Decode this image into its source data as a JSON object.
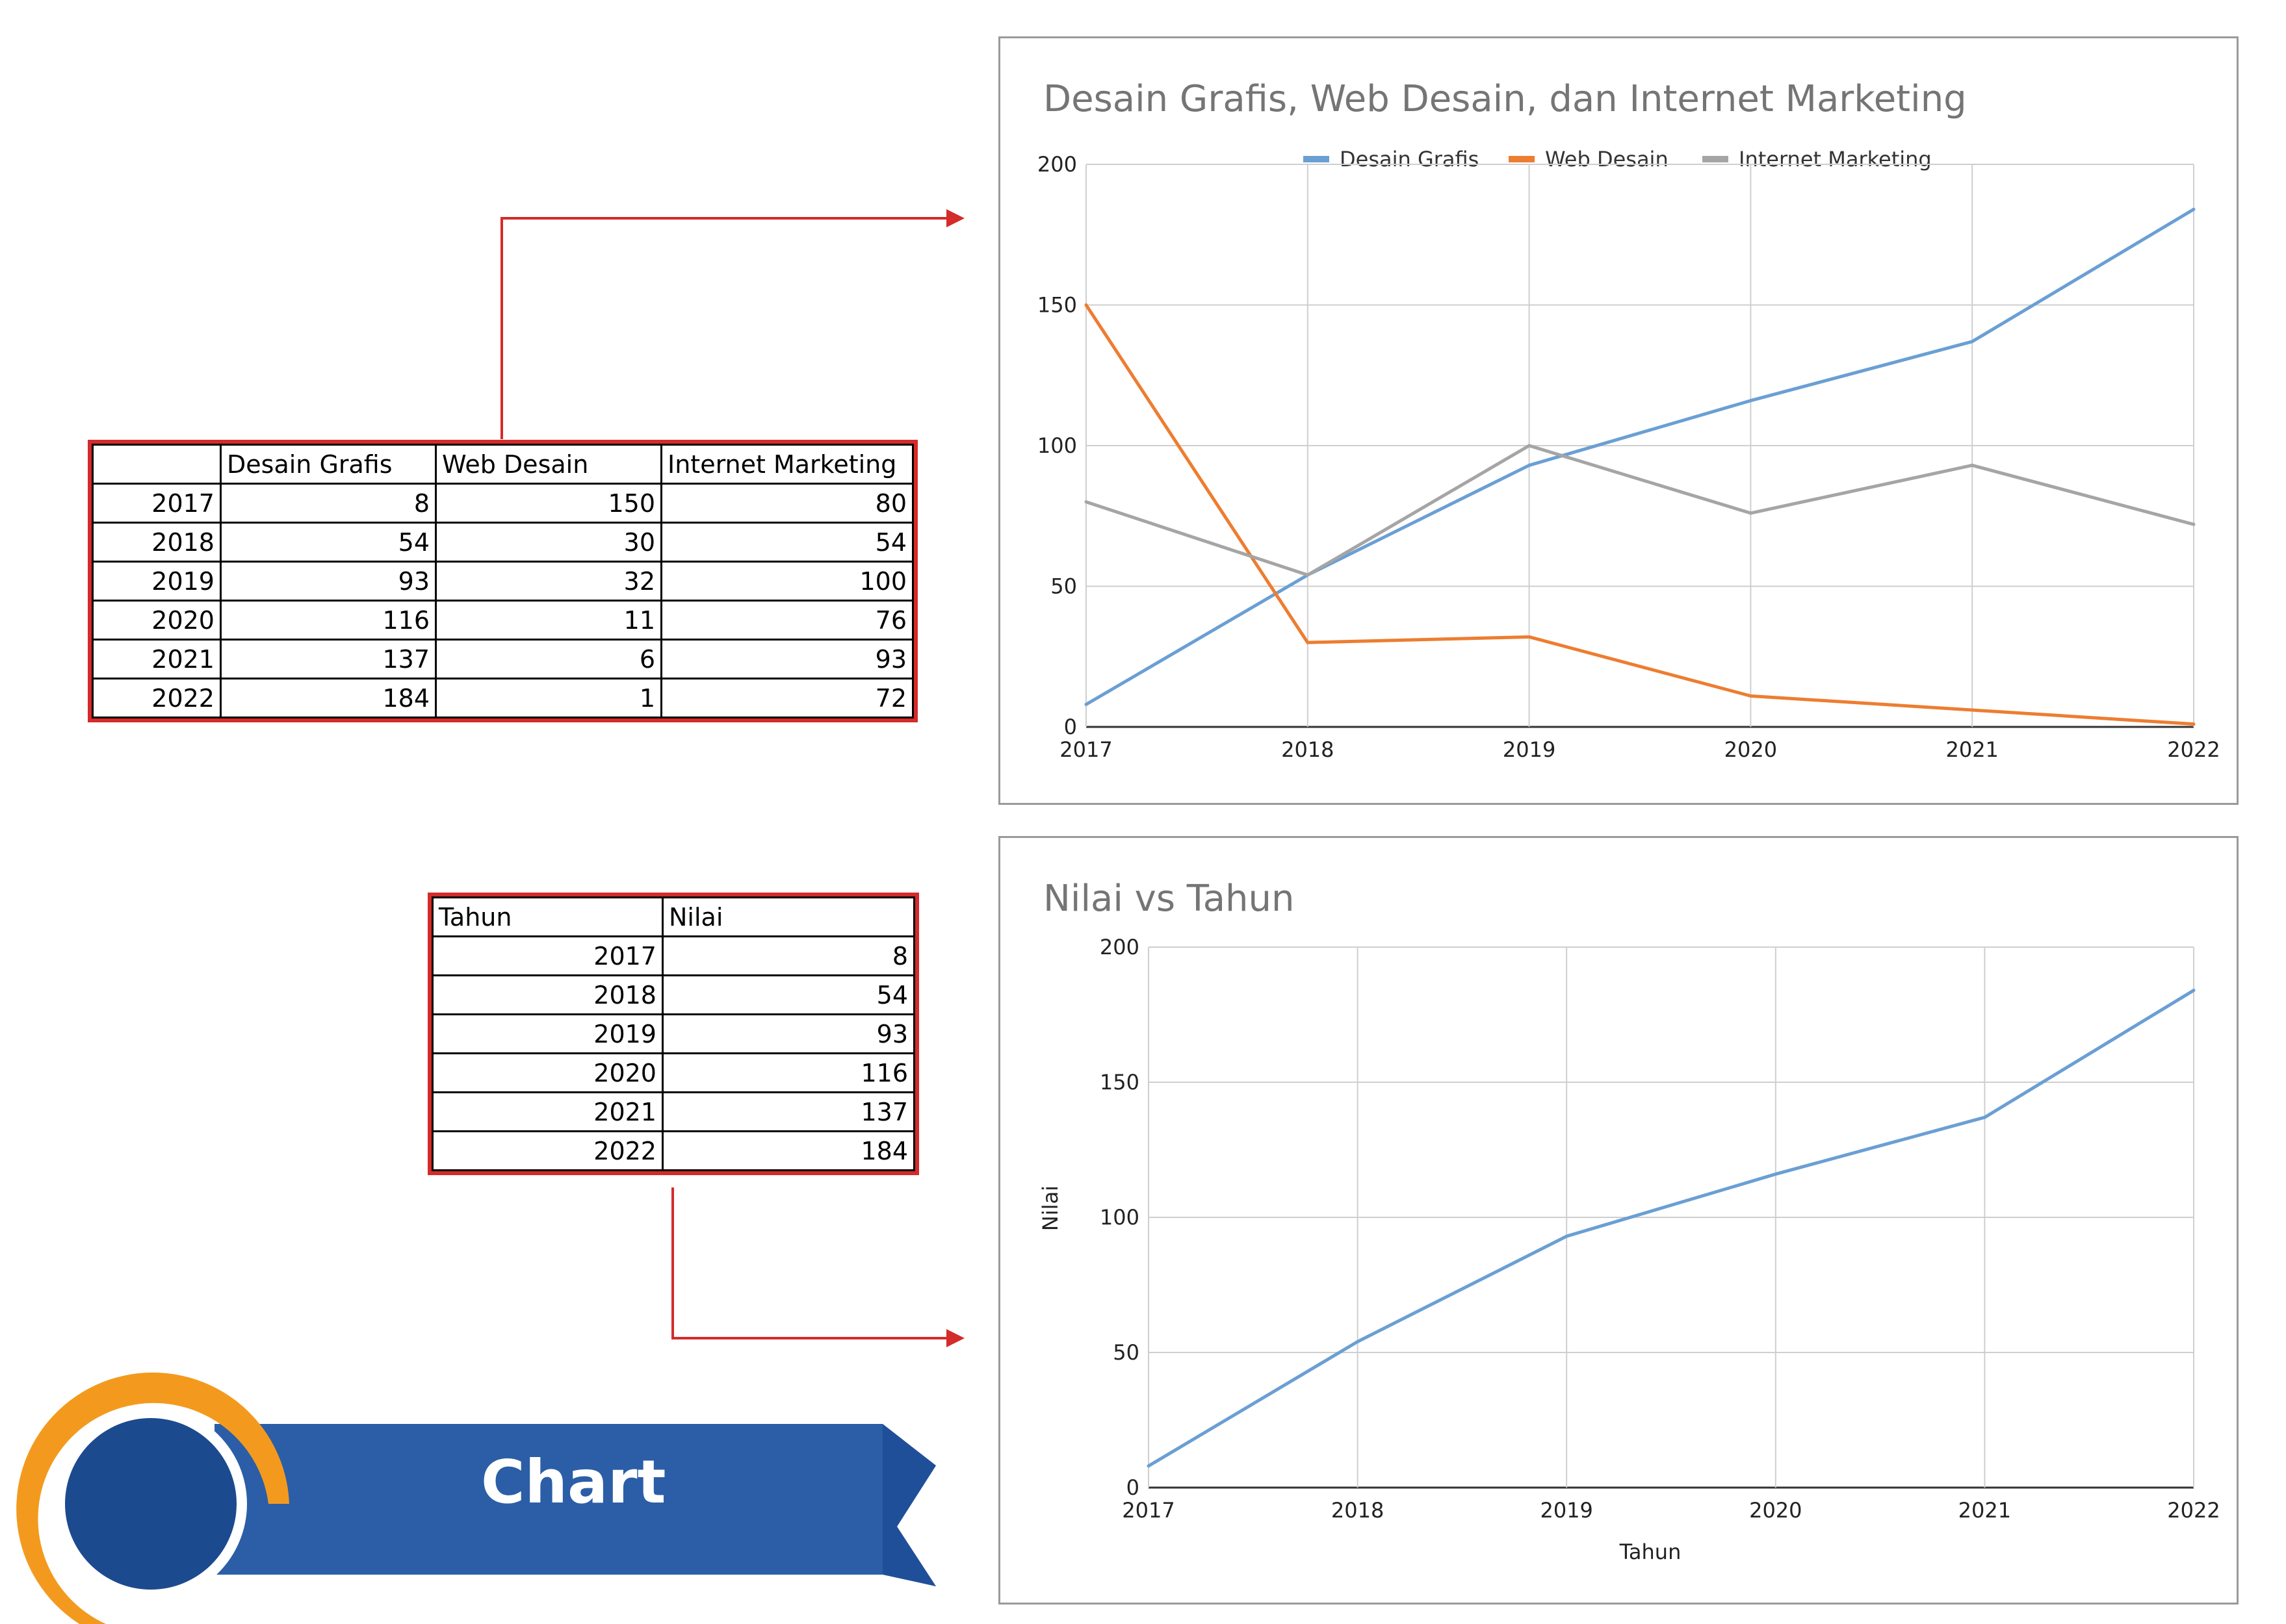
{
  "table1": {
    "header": [
      "",
      "Desain Grafis",
      "Web Desain",
      "Internet Marketing"
    ],
    "rows": [
      [
        "2017",
        "8",
        "150",
        "80"
      ],
      [
        "2018",
        "54",
        "30",
        "54"
      ],
      [
        "2019",
        "93",
        "32",
        "100"
      ],
      [
        "2020",
        "116",
        "11",
        "76"
      ],
      [
        "2021",
        "137",
        "6",
        "93"
      ],
      [
        "2022",
        "184",
        "1",
        "72"
      ]
    ]
  },
  "table2": {
    "header": [
      "Tahun",
      "Nilai"
    ],
    "rows": [
      [
        "2017",
        "8"
      ],
      [
        "2018",
        "54"
      ],
      [
        "2019",
        "93"
      ],
      [
        "2020",
        "116"
      ],
      [
        "2021",
        "137"
      ],
      [
        "2022",
        "184"
      ]
    ]
  },
  "banner": {
    "label": "Chart"
  },
  "colors": {
    "series_blue": "#6a9fd4",
    "series_orange": "#ed7d31",
    "series_gray": "#a5a5a5",
    "table_border_red": "#d42b2b",
    "banner_blue": "#2b5ea7",
    "banner_dark_blue": "#1c4a8f",
    "ring_orange": "#f39a1e"
  },
  "chart_data": [
    {
      "type": "line",
      "title": "Desain Grafis, Web Desain, dan Internet Marketing",
      "x": [
        "2017",
        "2018",
        "2019",
        "2020",
        "2021",
        "2022"
      ],
      "series": [
        {
          "name": "Desain Grafis",
          "values": [
            8,
            54,
            93,
            116,
            137,
            184
          ],
          "color": "#6a9fd4"
        },
        {
          "name": "Web Desain",
          "values": [
            150,
            30,
            32,
            11,
            6,
            1
          ],
          "color": "#ed7d31"
        },
        {
          "name": "Internet Marketing",
          "values": [
            80,
            54,
            100,
            76,
            93,
            72
          ],
          "color": "#a5a5a5"
        }
      ],
      "xlabel": "",
      "ylabel": "",
      "ylim": [
        0,
        200
      ],
      "yticks": [
        "0",
        "50",
        "100",
        "150",
        "200"
      ],
      "grid": true,
      "legend": "top"
    },
    {
      "type": "line",
      "title": "Nilai vs Tahun",
      "x": [
        "2017",
        "2018",
        "2019",
        "2020",
        "2021",
        "2022"
      ],
      "series": [
        {
          "values": [
            8,
            54,
            93,
            116,
            137,
            184
          ],
          "color": "#6a9fd4"
        }
      ],
      "xlabel": "Tahun",
      "ylabel": "Nilai",
      "ylim": [
        0,
        200
      ],
      "yticks": [
        "0",
        "50",
        "100",
        "150",
        "200"
      ],
      "grid": true,
      "legend": "none"
    }
  ]
}
